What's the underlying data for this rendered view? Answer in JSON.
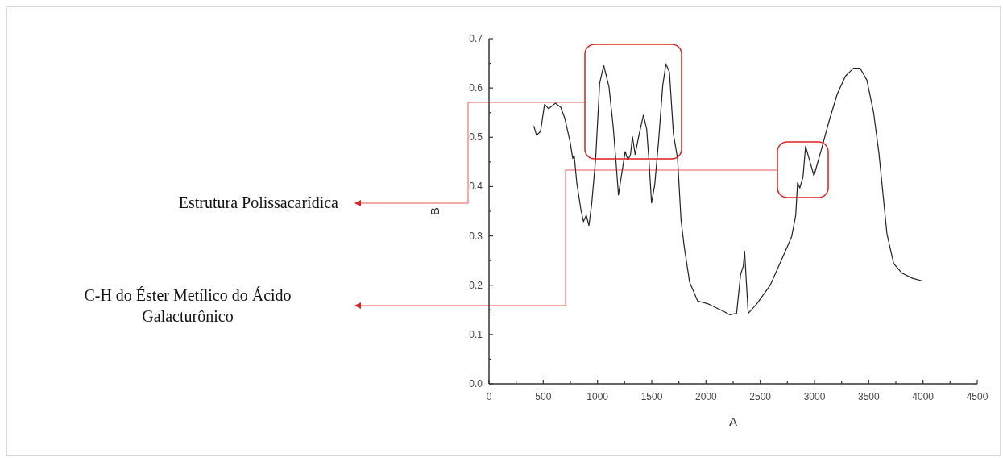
{
  "chart_data": {
    "type": "line",
    "xlabel": "A",
    "ylabel": "B",
    "xlim": [
      0,
      4500
    ],
    "ylim": [
      0,
      0.7
    ],
    "xticks": [
      0,
      {
        "value": 250,
        "label": null
      },
      500,
      {
        "value": 750,
        "label": null
      },
      1000,
      {
        "value": 1250,
        "label": null
      },
      1500,
      {
        "value": 1750,
        "label": null
      },
      2000,
      {
        "value": 2250,
        "label": null
      },
      2500,
      {
        "value": 2750,
        "label": null
      },
      3000,
      {
        "value": 3250,
        "label": null
      },
      3500,
      {
        "value": 3750,
        "label": null
      },
      4000,
      {
        "value": 4250,
        "label": null
      },
      4500
    ],
    "yticks": [
      {
        "value": 0,
        "label": "0.0"
      },
      {
        "value": 0.05,
        "label": null
      },
      0.1,
      {
        "value": 0.15,
        "label": null
      },
      0.2,
      {
        "value": 0.25,
        "label": null
      },
      0.3,
      {
        "value": 0.35,
        "label": null
      },
      0.4,
      {
        "value": 0.45,
        "label": null
      },
      0.5,
      {
        "value": 0.55,
        "label": null
      },
      0.6,
      {
        "value": 0.65,
        "label": null
      },
      0.7
    ],
    "grid": false,
    "marker": "none",
    "line_style": "solid",
    "annotations": [
      "Estrutura Polissacarídica",
      "C-H do Éster Metílico do Ácido Galacturônico"
    ],
    "series": [
      {
        "color": "#222222",
        "x": [
          413,
          438,
          475,
          512,
          550,
          611,
          661,
          698,
          748,
          772,
          785,
          809,
          847,
          871,
          896,
          921,
          946,
          983,
          1020,
          1057,
          1106,
          1144,
          1168,
          1193,
          1218,
          1255,
          1280,
          1304,
          1322,
          1347,
          1379,
          1423,
          1453,
          1473,
          1498,
          1527,
          1564,
          1601,
          1631,
          1663,
          1700,
          1738,
          1770,
          1800,
          1849,
          1923,
          2022,
          2171,
          2220,
          2282,
          2319,
          2344,
          2356,
          2369,
          2389,
          2468,
          2592,
          2715,
          2790,
          2827,
          2844,
          2864,
          2894,
          2918,
          2950,
          2995,
          3062,
          3136,
          3210,
          3285,
          3359,
          3421,
          3483,
          3545,
          3594,
          3631,
          3668,
          3730,
          3804,
          3903,
          3990
        ],
        "values": [
          0.523,
          0.504,
          0.512,
          0.567,
          0.558,
          0.569,
          0.561,
          0.539,
          0.49,
          0.457,
          0.463,
          0.408,
          0.353,
          0.329,
          0.342,
          0.321,
          0.364,
          0.457,
          0.61,
          0.646,
          0.602,
          0.523,
          0.457,
          0.383,
          0.419,
          0.471,
          0.454,
          0.465,
          0.501,
          0.465,
          0.501,
          0.545,
          0.517,
          0.457,
          0.367,
          0.403,
          0.495,
          0.605,
          0.649,
          0.632,
          0.506,
          0.457,
          0.332,
          0.277,
          0.206,
          0.168,
          0.162,
          0.146,
          0.14,
          0.143,
          0.222,
          0.239,
          0.269,
          0.217,
          0.143,
          0.162,
          0.2,
          0.261,
          0.299,
          0.342,
          0.408,
          0.397,
          0.419,
          0.482,
          0.457,
          0.422,
          0.474,
          0.534,
          0.588,
          0.624,
          0.64,
          0.64,
          0.616,
          0.55,
          0.468,
          0.386,
          0.304,
          0.244,
          0.225,
          0.214,
          0.209
        ]
      }
    ]
  }
}
